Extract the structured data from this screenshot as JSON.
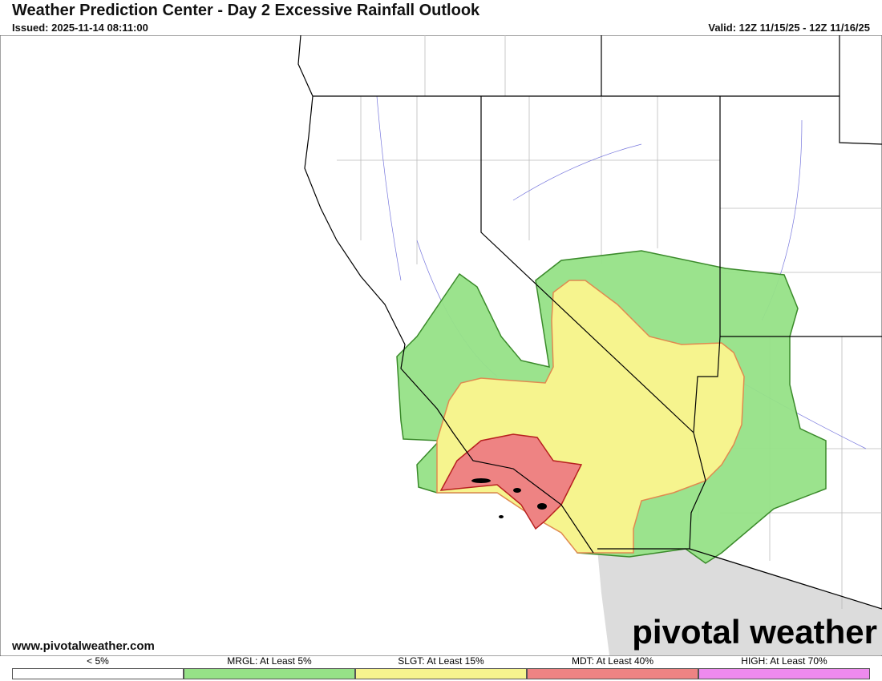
{
  "header": {
    "title": "Weather Prediction Center - Day 2 Excessive Rainfall Outlook",
    "issued": "Issued: 2025-11-14 08:11:00",
    "valid": "Valid: 12Z 11/15/25 - 12Z 11/16/25"
  },
  "map": {
    "source": "www.pivotalweather.com",
    "logo": "pivotal weather"
  },
  "legend": [
    {
      "label": "< 5%",
      "color": "#ffffff"
    },
    {
      "label": "MRGL: At Least 5%",
      "color": "#96e287"
    },
    {
      "label": "SLGT: At Least 15%",
      "color": "#f6f48e"
    },
    {
      "label": "MDT: At Least 40%",
      "color": "#ee8383"
    },
    {
      "label": "HIGH: At Least 70%",
      "color": "#ee8aee"
    }
  ]
}
